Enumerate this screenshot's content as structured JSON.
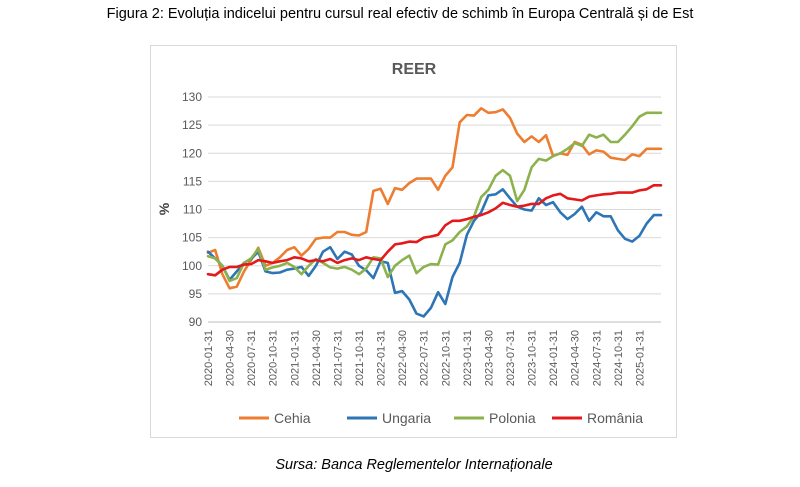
{
  "figure": {
    "caption": "Figura 2: Evoluția indicelui pentru cursul real efectiv de schimb în Europa Centrală și de Est",
    "source": "Sursa: Banca Reglementelor Internaționale"
  },
  "chart_data": {
    "type": "line",
    "title": "REER",
    "xlabel": "",
    "ylabel": "%",
    "ylim": [
      90,
      130
    ],
    "yticks": [
      90,
      95,
      100,
      105,
      110,
      115,
      120,
      125,
      130
    ],
    "grid": true,
    "legend_position": "bottom",
    "x": [
      "2020-01-31",
      "2020-02-29",
      "2020-03-31",
      "2020-04-30",
      "2020-05-31",
      "2020-06-30",
      "2020-07-31",
      "2020-08-31",
      "2020-09-30",
      "2020-10-31",
      "2020-11-30",
      "2020-12-31",
      "2021-01-31",
      "2021-02-28",
      "2021-03-31",
      "2021-04-30",
      "2021-05-31",
      "2021-06-30",
      "2021-07-31",
      "2021-08-31",
      "2021-09-30",
      "2021-10-31",
      "2021-11-30",
      "2021-12-31",
      "2022-01-31",
      "2022-02-28",
      "2022-03-31",
      "2022-04-30",
      "2022-05-31",
      "2022-06-30",
      "2022-07-31",
      "2022-08-31",
      "2022-09-30",
      "2022-10-31",
      "2022-11-30",
      "2022-12-31",
      "2023-01-31",
      "2023-02-28",
      "2023-03-31",
      "2023-04-30",
      "2023-05-31",
      "2023-06-30",
      "2023-07-31",
      "2023-08-31",
      "2023-09-30",
      "2023-10-31",
      "2023-11-30",
      "2023-12-31",
      "2024-01-31",
      "2024-02-29",
      "2024-03-31",
      "2024-04-30",
      "2024-05-31",
      "2024-06-30",
      "2024-07-31",
      "2024-08-31",
      "2024-09-30",
      "2024-10-31",
      "2024-11-30",
      "2024-12-31",
      "2025-01-31",
      "2025-02-28",
      "2025-03-31",
      "2025-04-30"
    ],
    "xtick_labels": [
      "2020-01-31",
      "2020-04-30",
      "2020-07-31",
      "2020-10-31",
      "2021-01-31",
      "2021-04-30",
      "2021-07-31",
      "2021-10-31",
      "2022-01-31",
      "2022-04-30",
      "2022-07-31",
      "2022-10-31",
      "2023-01-31",
      "2023-04-30",
      "2023-07-31",
      "2023-10-31",
      "2024-01-31",
      "2024-04-30",
      "2024-07-31",
      "2024-10-31",
      "2025-01-31"
    ],
    "series": [
      {
        "name": "Cehia",
        "color": "#ED7D31",
        "values": [
          102.3,
          102.8,
          98.5,
          96.0,
          96.3,
          99.0,
          101.0,
          103.2,
          100.0,
          100.5,
          101.5,
          102.8,
          103.3,
          101.8,
          103.0,
          104.8,
          105.0,
          105.0,
          106.0,
          106.0,
          105.5,
          105.4,
          106.0,
          113.3,
          113.7,
          111.0,
          113.8,
          113.5,
          114.7,
          115.5,
          115.5,
          115.5,
          113.5,
          116.0,
          117.5,
          125.5,
          126.8,
          126.7,
          128.0,
          127.2,
          127.3,
          127.8,
          126.3,
          123.5,
          122.0,
          123.0,
          122.0,
          123.2,
          119.5,
          120.0,
          119.7,
          122.0,
          121.5,
          119.8,
          120.5,
          120.3,
          119.2,
          119.0,
          118.8,
          119.8,
          119.5,
          120.8,
          120.8,
          120.8
        ]
      },
      {
        "name": "Ungaria",
        "color": "#2E75B6",
        "values": [
          102.5,
          101.3,
          100.0,
          97.5,
          99.0,
          100.5,
          101.2,
          102.5,
          99.0,
          98.7,
          98.8,
          99.3,
          99.5,
          99.8,
          98.2,
          100.0,
          102.5,
          103.3,
          101.2,
          102.5,
          102.0,
          100.0,
          99.2,
          97.8,
          100.8,
          100.5,
          95.2,
          95.5,
          94.0,
          91.5,
          91.0,
          92.5,
          95.3,
          93.2,
          98.0,
          100.5,
          105.5,
          108.0,
          109.5,
          112.5,
          112.7,
          113.6,
          112.0,
          110.5,
          110.0,
          109.8,
          112.0,
          110.8,
          111.3,
          109.5,
          108.3,
          109.2,
          110.5,
          108.0,
          109.5,
          108.8,
          108.8,
          106.3,
          104.8,
          104.3,
          105.3,
          107.5,
          109.0,
          109.0
        ]
      },
      {
        "name": "Polonia",
        "color": "#8CB24E",
        "values": [
          101.7,
          101.3,
          100.0,
          97.3,
          97.8,
          100.5,
          101.3,
          103.0,
          99.3,
          99.7,
          100.0,
          100.5,
          99.8,
          98.5,
          100.0,
          101.2,
          100.5,
          99.7,
          99.5,
          99.8,
          99.3,
          98.5,
          99.5,
          101.5,
          101.3,
          98.0,
          100.0,
          101.0,
          101.8,
          98.7,
          99.8,
          100.3,
          100.2,
          103.8,
          104.5,
          106.0,
          107.0,
          108.8,
          112.2,
          113.5,
          116.0,
          117.0,
          116.0,
          111.5,
          113.5,
          117.5,
          119.0,
          118.7,
          119.5,
          120.0,
          120.8,
          121.8,
          121.3,
          123.3,
          122.8,
          123.3,
          122.0,
          122.0,
          123.3,
          124.8,
          126.5,
          127.2,
          127.2,
          127.2
        ]
      },
      {
        "name": "România",
        "color": "#E3191B",
        "values": [
          98.5,
          98.3,
          99.3,
          99.8,
          99.8,
          100.2,
          100.3,
          101.0,
          100.8,
          100.5,
          100.8,
          101.0,
          101.5,
          101.3,
          100.8,
          101.0,
          100.8,
          101.2,
          100.5,
          101.0,
          101.3,
          101.0,
          101.5,
          101.2,
          101.0,
          102.5,
          103.8,
          104.0,
          104.3,
          104.2,
          105.0,
          105.2,
          105.5,
          107.2,
          108.0,
          108.0,
          108.3,
          108.7,
          109.0,
          109.5,
          110.2,
          111.2,
          110.8,
          110.5,
          110.7,
          111.0,
          111.0,
          112.0,
          112.5,
          112.8,
          112.0,
          111.8,
          111.6,
          112.3,
          112.5,
          112.7,
          112.8,
          113.0,
          113.0,
          113.0,
          113.4,
          113.6,
          114.3,
          114.3
        ]
      }
    ]
  }
}
